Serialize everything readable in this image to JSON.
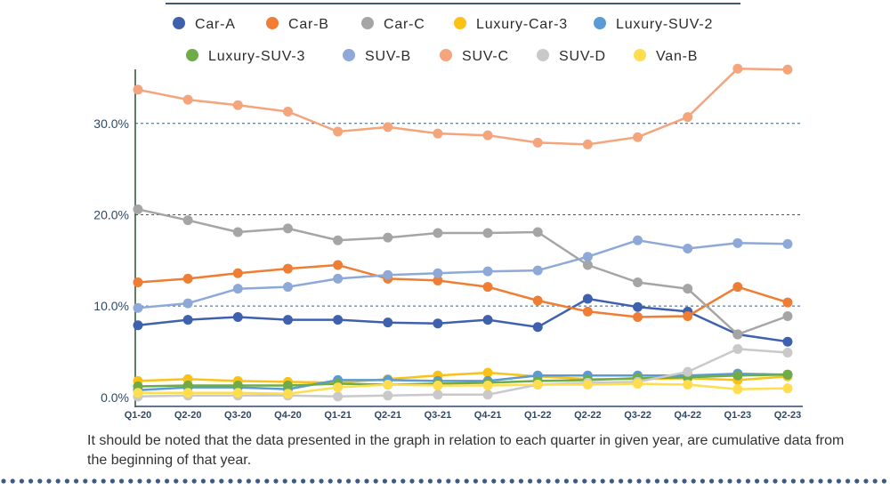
{
  "chart_data": {
    "type": "line",
    "title": "",
    "xlabel": "",
    "ylabel": "",
    "categories": [
      "Q1-20",
      "Q2-20",
      "Q3-20",
      "Q4-20",
      "Q1-21",
      "Q2-21",
      "Q3-21",
      "Q4-21",
      "Q1-22",
      "Q2-22",
      "Q3-22",
      "Q4-22",
      "Q1-23",
      "Q2-23"
    ],
    "y_tick_labels": [
      "0.0%",
      "10.0%",
      "20.0%",
      "30.0%"
    ],
    "y_tick_values": [
      0,
      10,
      20,
      30
    ],
    "ylim": [
      -0.5,
      36.7
    ],
    "grid": "horizontal dashed",
    "legend_position": "top",
    "series": [
      {
        "name": "Car-A",
        "color": "#3f61ad",
        "values": [
          7.9,
          8.5,
          8.8,
          8.5,
          8.5,
          8.2,
          8.1,
          8.5,
          7.7,
          10.8,
          9.9,
          9.4,
          6.9,
          6.1
        ]
      },
      {
        "name": "Car-B",
        "color": "#ef7d33",
        "values": [
          12.6,
          13.0,
          13.6,
          14.1,
          14.5,
          13.0,
          12.8,
          12.1,
          10.6,
          9.4,
          8.8,
          8.9,
          12.1,
          10.4
        ]
      },
      {
        "name": "Car-C",
        "color": "#a5a5a5",
        "values": [
          20.6,
          19.4,
          18.1,
          18.5,
          17.2,
          17.5,
          18.0,
          18.0,
          18.1,
          14.5,
          12.6,
          11.9,
          6.9,
          8.9
        ]
      },
      {
        "name": "Luxury-Car-3",
        "color": "#fbc116",
        "values": [
          1.8,
          2.0,
          1.8,
          1.7,
          1.6,
          2.0,
          2.4,
          2.7,
          2.3,
          2.0,
          2.0,
          2.1,
          1.9,
          2.3
        ]
      },
      {
        "name": "Luxury-SUV-2",
        "color": "#5a9bd5",
        "values": [
          0.8,
          1.1,
          1.1,
          0.9,
          1.9,
          1.9,
          1.8,
          1.8,
          2.4,
          2.4,
          2.4,
          2.4,
          2.6,
          2.5
        ]
      },
      {
        "name": "Luxury-SUV-3",
        "color": "#6fab46",
        "values": [
          1.2,
          1.3,
          1.3,
          1.3,
          1.5,
          1.4,
          1.5,
          1.6,
          1.8,
          1.9,
          2.1,
          2.2,
          2.4,
          2.5
        ]
      },
      {
        "name": "SUV-B",
        "color": "#8ea9d8",
        "values": [
          9.8,
          10.3,
          11.9,
          12.1,
          13.0,
          13.4,
          13.6,
          13.8,
          13.9,
          15.4,
          17.2,
          16.3,
          16.9,
          16.8
        ]
      },
      {
        "name": "SUV-C",
        "color": "#f4a57b",
        "values": [
          33.7,
          32.6,
          32.0,
          31.3,
          29.1,
          29.6,
          28.9,
          28.7,
          27.9,
          27.7,
          28.5,
          30.7,
          36.0,
          35.9
        ]
      },
      {
        "name": "SUV-D",
        "color": "#c9c9c9",
        "values": [
          0.1,
          0.2,
          0.2,
          0.2,
          0.1,
          0.2,
          0.3,
          0.3,
          1.4,
          1.6,
          1.7,
          2.8,
          5.3,
          4.9
        ]
      },
      {
        "name": "Van-B",
        "color": "#fedd4f",
        "values": [
          0.5,
          0.5,
          0.5,
          0.4,
          1.1,
          1.4,
          1.3,
          1.3,
          1.4,
          1.4,
          1.5,
          1.4,
          0.9,
          1.0
        ]
      }
    ]
  },
  "footnote": "It should be noted that the data presented in the graph in relation to each quarter in given year, are cumulative data from the beginning of that year."
}
